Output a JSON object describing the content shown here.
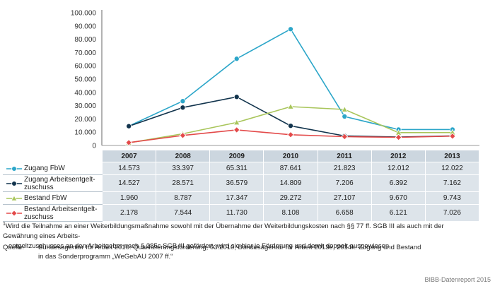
{
  "chart_data": {
    "type": "line",
    "x": [
      "2007",
      "2008",
      "2009",
      "2010",
      "2011",
      "2012",
      "2013"
    ],
    "y_ticks": [
      "0",
      "10.000",
      "20.000",
      "30.000",
      "40.000",
      "50.000",
      "60.000",
      "70.000",
      "80.000",
      "90.000",
      "100.000"
    ],
    "ylim": [
      0,
      100000
    ],
    "grid": false,
    "legend": "table-left",
    "series": [
      {
        "name": "Zugang FbW",
        "marker": "circle",
        "color": "#2ca6c9",
        "values": [
          14573,
          33397,
          65311,
          87641,
          21823,
          12012,
          12022
        ],
        "labels": [
          "14.573",
          "33.397",
          "65.311",
          "87.641",
          "21.823",
          "12.012",
          "12.022"
        ]
      },
      {
        "name": "Zugang Arbeitsentgelt-\nzuschuss",
        "marker": "circle",
        "color": "#12344d",
        "values": [
          14527,
          28571,
          36579,
          14809,
          7206,
          6392,
          7162
        ],
        "labels": [
          "14.527",
          "28.571",
          "36.579",
          "14.809",
          "7.206",
          "6.392",
          "7.162"
        ]
      },
      {
        "name": "Bestand FbW",
        "marker": "triangle",
        "color": "#a8c55a",
        "values": [
          1960,
          8787,
          17347,
          29272,
          27107,
          9670,
          9743
        ],
        "labels": [
          "1.960",
          "8.787",
          "17.347",
          "29.272",
          "27.107",
          "9.670",
          "9.743"
        ]
      },
      {
        "name": "Bestand Arbeitsentgelt-\nzuschuss",
        "marker": "diamond",
        "color": "#e34a4a",
        "values": [
          2178,
          7544,
          11730,
          8108,
          6658,
          6121,
          7026
        ],
        "labels": [
          "2.178",
          "7.544",
          "11.730",
          "8.108",
          "6.658",
          "6.121",
          "7.026"
        ]
      }
    ]
  },
  "footnote": {
    "mark": "1",
    "line1": "Wird die Teilnahme an einer Weiterbildungsmaßnahme sowohl mit der Übernahme der Weiterbildungskosten nach §§ 77 ff. SGB III als auch mit der Gewährung eines Arbeits-",
    "line2": "entgeltzuschusses an den Arbeitgeber nach § 235c SGB III gefördert, wird sie hier je Förderung und damit doppelt ausgewiesen."
  },
  "source": {
    "label": "Quelle:",
    "line1": "Bundesagentur für Arbeit 2010: Qualifizierungsförderung, 03.2010; Bundesagentur für Arbeit 2013e, 2014k: Zugang und Bestand",
    "line2": "in das Sonderprogramm „WeGebAU 2007 ff.“"
  },
  "credit": "BIBB-Datenreport 2015"
}
